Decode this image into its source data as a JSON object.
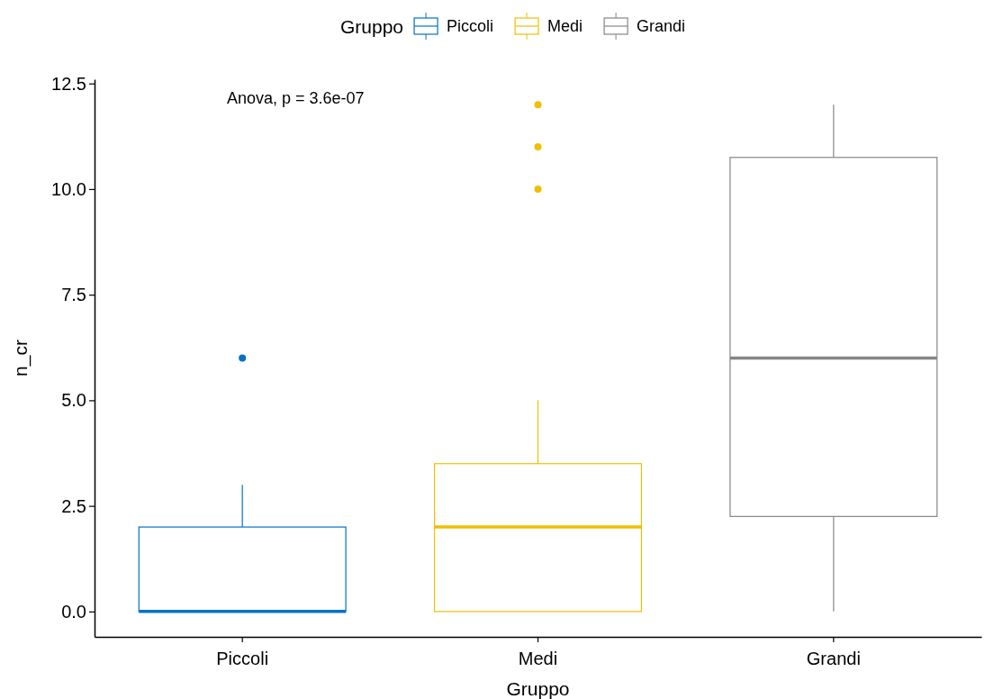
{
  "chart_data": {
    "type": "box",
    "xlabel": "Gruppo",
    "ylabel": "n_cr",
    "legend_title": "Gruppo",
    "legend": "top",
    "categories": [
      "Piccoli",
      "Medi",
      "Grandi"
    ],
    "ylim": [
      -0.6,
      12.6
    ],
    "yticks": [
      {
        "value": 0,
        "label": "0.0"
      },
      {
        "value": 2.5,
        "label": "2.5"
      },
      {
        "value": 5,
        "label": "5.0"
      },
      {
        "value": 7.5,
        "label": "7.5"
      },
      {
        "value": 10,
        "label": "10.0"
      },
      {
        "value": 12.5,
        "label": "12.5"
      }
    ],
    "annotations": [
      "Anova, p = 3.6e-07"
    ],
    "series": [
      {
        "name": "Piccoli",
        "color": "#0073c2",
        "boxes": [
          {
            "low": 0,
            "q1": 0,
            "median": 0,
            "q3": 2,
            "high": 3,
            "outliers": [
              6
            ]
          },
          null,
          null
        ]
      },
      {
        "name": "Medi",
        "color": "#efc000",
        "boxes": [
          null,
          {
            "low": 0,
            "q1": 0,
            "median": 2,
            "q3": 3.5,
            "high": 5,
            "outliers": [
              10,
              11,
              12
            ]
          },
          null
        ]
      },
      {
        "name": "Grandi",
        "color": "#868686",
        "boxes": [
          null,
          null,
          {
            "low": 0,
            "q1": 2.25,
            "median": 6,
            "q3": 10.75,
            "high": 12
          }
        ]
      }
    ]
  }
}
